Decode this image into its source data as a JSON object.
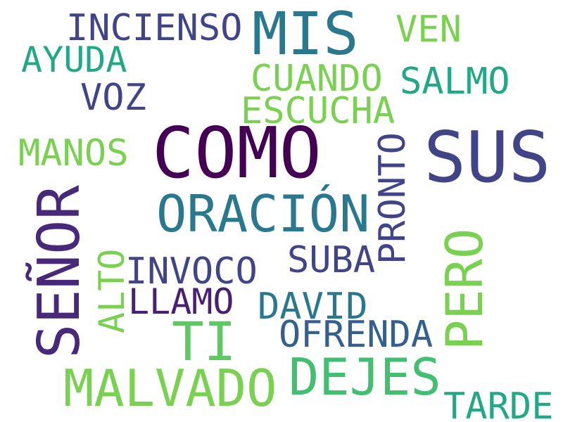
{
  "words": {
    "incienso": "INCIENSO",
    "mis": "MIS",
    "ven": "VEN",
    "ayuda": "AYUDA",
    "cuando": "CUANDO",
    "salmo": "SALMO",
    "voz": "VOZ",
    "escucha": "ESCUCHA",
    "manos": "MANOS",
    "como": "COMO",
    "sus": "SUS",
    "pronto": "PRONTO",
    "senor": "SEÑOR",
    "oracion": "ORACIÓN",
    "alto": "ALTO",
    "invoco": "INVOCO",
    "suba": "SUBA",
    "pero": "PERO",
    "llamo": "LLAMO",
    "david": "DAVID",
    "ti": "TI",
    "ofrenda": "OFRENDA",
    "dejes": "DEJES",
    "malvado": "MALVADO",
    "tarde": "TARDE"
  }
}
